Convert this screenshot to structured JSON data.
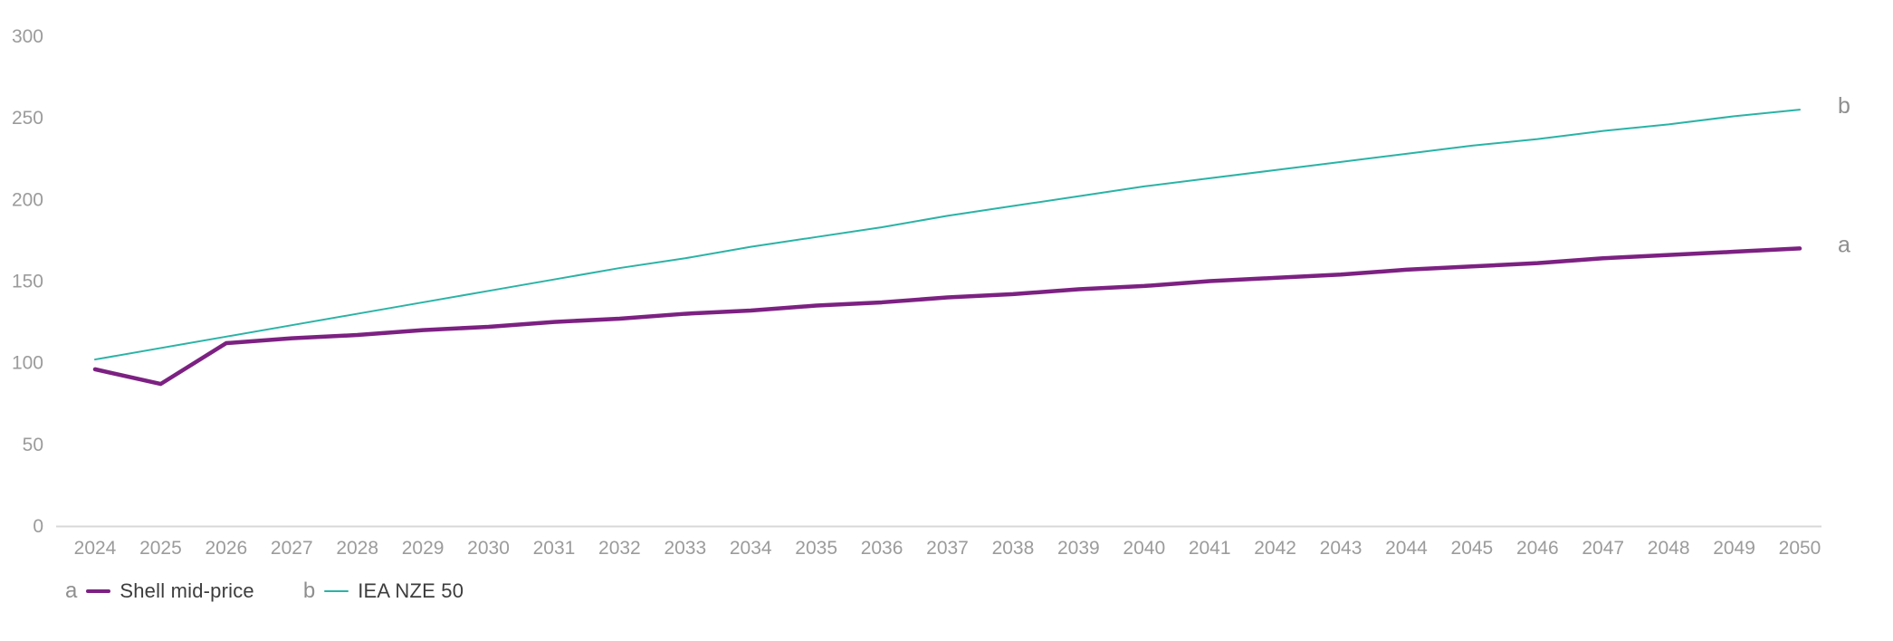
{
  "chart_data": {
    "type": "line",
    "title": "",
    "xlabel": "",
    "ylabel": "",
    "x": [
      2024,
      2025,
      2026,
      2027,
      2028,
      2029,
      2030,
      2031,
      2032,
      2033,
      2034,
      2035,
      2036,
      2037,
      2038,
      2039,
      2040,
      2041,
      2042,
      2043,
      2044,
      2045,
      2046,
      2047,
      2048,
      2049,
      2050
    ],
    "ylim": [
      0,
      300
    ],
    "yticks": [
      0,
      50,
      100,
      150,
      200,
      250,
      300
    ],
    "grid": false,
    "legend_position": "bottom-left",
    "series": [
      {
        "name": "Shell mid-price",
        "letter": "a",
        "color": "#7c2182",
        "stroke_width": 4.5,
        "values": [
          96,
          87,
          112,
          115,
          117,
          120,
          122,
          125,
          127,
          130,
          132,
          135,
          137,
          140,
          142,
          145,
          147,
          150,
          152,
          154,
          157,
          159,
          161,
          164,
          166,
          168,
          170
        ]
      },
      {
        "name": "IEA NZE 50",
        "letter": "b",
        "color": "#2ab3a6",
        "stroke_width": 2,
        "values": [
          102,
          109,
          116,
          123,
          130,
          137,
          144,
          151,
          158,
          164,
          171,
          177,
          183,
          190,
          196,
          202,
          208,
          213,
          218,
          223,
          228,
          233,
          237,
          242,
          246,
          251,
          255
        ]
      }
    ],
    "colors": {
      "axis_line": "#d8d8d8",
      "tick_text": "#9b9b9b",
      "end_label_text": "#8f8f8f",
      "legend_text": "#3d3d3d"
    }
  }
}
